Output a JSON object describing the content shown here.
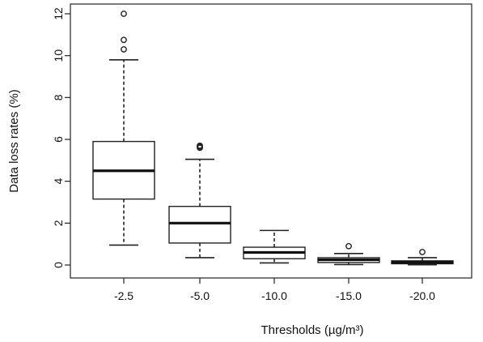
{
  "chart_data": {
    "type": "boxplot",
    "xlabel": "Thresholds  (µg/m³)",
    "ylabel": "Data loss rates (%)",
    "ylim": [
      0,
      12
    ],
    "yticks": [
      0,
      2,
      4,
      6,
      8,
      10,
      12
    ],
    "grid": false,
    "categories": [
      "-2.5",
      "-5.0",
      "-10.0",
      "-15.0",
      "-20.0"
    ],
    "boxes": [
      {
        "category": "-2.5",
        "min": 0.95,
        "q1": 3.15,
        "median": 4.5,
        "q3": 5.9,
        "max": 9.8,
        "outliers": [
          10.3,
          10.75,
          12.0
        ]
      },
      {
        "category": "-5.0",
        "min": 0.35,
        "q1": 1.05,
        "median": 2.0,
        "q3": 2.8,
        "max": 5.05,
        "outliers": [
          5.6,
          5.65,
          5.7
        ]
      },
      {
        "category": "-10.0",
        "min": 0.1,
        "q1": 0.3,
        "median": 0.6,
        "q3": 0.85,
        "max": 1.65,
        "outliers": []
      },
      {
        "category": "-15.0",
        "min": 0.02,
        "q1": 0.12,
        "median": 0.25,
        "q3": 0.35,
        "max": 0.55,
        "outliers": [
          0.9
        ]
      },
      {
        "category": "-20.0",
        "min": 0.01,
        "q1": 0.06,
        "median": 0.12,
        "q3": 0.2,
        "max": 0.35,
        "outliers": [
          0.62
        ]
      }
    ]
  }
}
